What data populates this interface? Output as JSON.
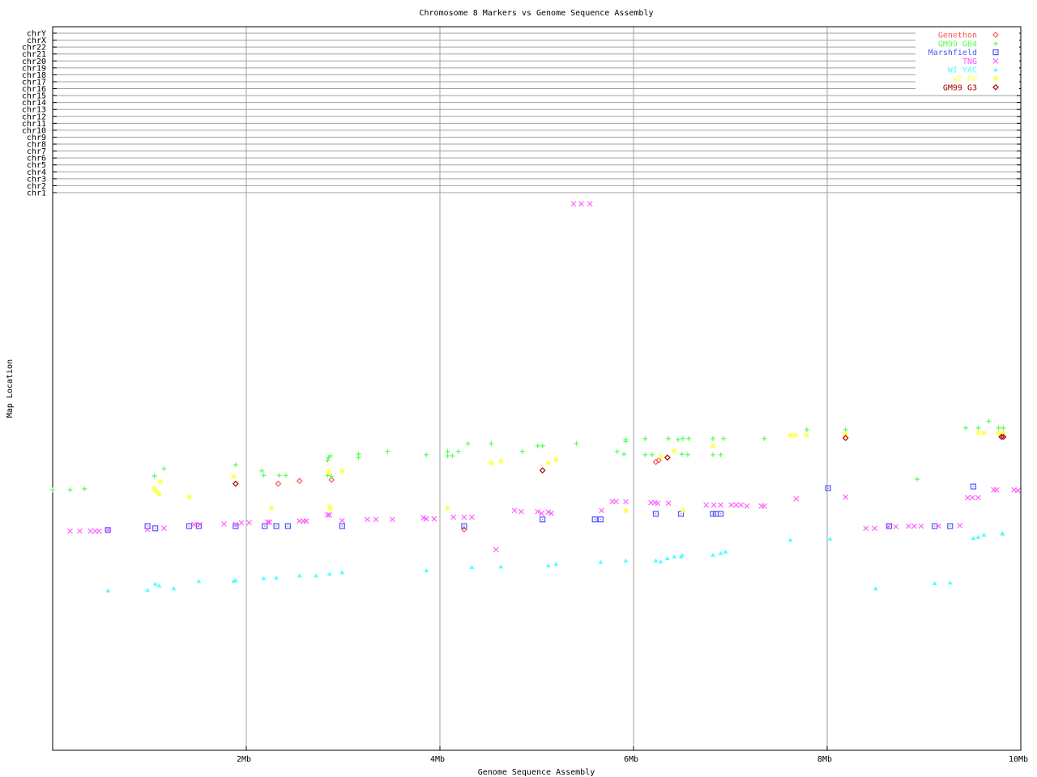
{
  "chart_data": {
    "type": "scatter",
    "title": "Chromosome 8 Markers vs Genome Sequence Assembly",
    "xlabel": "Genome Sequence Assembly",
    "ylabel": "Map Location",
    "xlim": [
      0,
      10
    ],
    "x_unit": "Mb",
    "x_ticks": [
      "2Mb",
      "4Mb",
      "6Mb",
      "8Mb",
      "10Mb"
    ],
    "x_tick_values": [
      2,
      4,
      6,
      8,
      10
    ],
    "y_category_ticks": [
      "chrY",
      "chrX",
      "chr22",
      "chr21",
      "chr20",
      "chr19",
      "chr18",
      "chr17",
      "chr16",
      "chr15",
      "chr14",
      "chr13",
      "chr12",
      "chr11",
      "chr10",
      "chr9",
      "chr8",
      "chr7",
      "chr6",
      "chr5",
      "chr4",
      "chr3",
      "chr2",
      "chr1"
    ],
    "ylim": [
      0,
      100
    ],
    "grid": true,
    "legend_position": "top-right",
    "series": [
      {
        "name": "Genethon",
        "color": "#ff5555",
        "marker": "diamond",
        "points": [
          [
            2.33,
            47.8
          ],
          [
            2.55,
            48.3
          ],
          [
            2.88,
            48.5
          ],
          [
            4.25,
            39.6
          ],
          [
            6.23,
            51.7
          ],
          [
            6.26,
            52.0
          ]
        ]
      },
      {
        "name": "GM99 GB4",
        "color": "#55ff55",
        "marker": "plus",
        "points": [
          [
            0,
            46.7
          ],
          [
            0.18,
            46.7
          ],
          [
            0.33,
            46.9
          ],
          [
            1.05,
            49.2
          ],
          [
            1.15,
            50.5
          ],
          [
            1.89,
            51.2
          ],
          [
            2.16,
            50.1
          ],
          [
            2.18,
            49.3
          ],
          [
            2.34,
            49.3
          ],
          [
            2.41,
            49.3
          ],
          [
            2.85,
            52.5
          ],
          [
            2.84,
            52.0
          ],
          [
            2.87,
            52.8
          ],
          [
            2.84,
            49.3
          ],
          [
            2.88,
            49.1
          ],
          [
            3.16,
            53.1
          ],
          [
            3.16,
            52.5
          ],
          [
            3.46,
            53.6
          ],
          [
            3.86,
            53.0
          ],
          [
            4.08,
            53.6
          ],
          [
            4.08,
            52.8
          ],
          [
            4.13,
            52.8
          ],
          [
            4.19,
            53.6
          ],
          [
            4.29,
            55.0
          ],
          [
            4.53,
            55.0
          ],
          [
            4.85,
            53.6
          ],
          [
            5.01,
            54.6
          ],
          [
            5.06,
            54.6
          ],
          [
            5.41,
            55.0
          ],
          [
            5.83,
            53.6
          ],
          [
            5.9,
            53.1
          ],
          [
            5.92,
            55.7
          ],
          [
            5.92,
            55.4
          ],
          [
            6.12,
            55.9
          ],
          [
            6.12,
            53.0
          ],
          [
            6.19,
            53.0
          ],
          [
            6.36,
            55.9
          ],
          [
            6.46,
            55.7
          ],
          [
            6.51,
            55.9
          ],
          [
            6.57,
            55.9
          ],
          [
            6.5,
            53.1
          ],
          [
            6.56,
            53.0
          ],
          [
            6.82,
            55.9
          ],
          [
            6.82,
            53.0
          ],
          [
            6.93,
            55.9
          ],
          [
            6.9,
            53.0
          ],
          [
            7.35,
            55.9
          ],
          [
            7.79,
            57.5
          ],
          [
            8.19,
            57.5
          ],
          [
            8.93,
            48.6
          ],
          [
            9.43,
            57.8
          ],
          [
            9.56,
            57.8
          ],
          [
            9.67,
            59.0
          ],
          [
            9.77,
            57.8
          ],
          [
            9.82,
            57.8
          ]
        ]
      },
      {
        "name": "Marshfield",
        "color": "#5555ff",
        "marker": "square",
        "points": [
          [
            0.57,
            39.5
          ],
          [
            0.98,
            40.2
          ],
          [
            1.06,
            39.8
          ],
          [
            1.41,
            40.2
          ],
          [
            1.51,
            40.2
          ],
          [
            1.89,
            40.2
          ],
          [
            2.19,
            40.2
          ],
          [
            2.31,
            40.2
          ],
          [
            2.43,
            40.2
          ],
          [
            2.99,
            40.2
          ],
          [
            4.25,
            40.2
          ],
          [
            5.06,
            41.4
          ],
          [
            5.6,
            41.4
          ],
          [
            5.66,
            41.4
          ],
          [
            6.23,
            42.4
          ],
          [
            6.49,
            42.4
          ],
          [
            6.82,
            42.4
          ],
          [
            6.85,
            42.4
          ],
          [
            6.9,
            42.4
          ],
          [
            8.01,
            47.0
          ],
          [
            8.64,
            40.2
          ],
          [
            9.11,
            40.2
          ],
          [
            9.27,
            40.2
          ],
          [
            9.51,
            47.3
          ]
        ]
      },
      {
        "name": "TNG",
        "color": "#ff55ff",
        "marker": "x",
        "points": [
          [
            0.18,
            39.3
          ],
          [
            0.28,
            39.3
          ],
          [
            0.39,
            39.3
          ],
          [
            0.44,
            39.3
          ],
          [
            0.48,
            39.3
          ],
          [
            0.57,
            39.5
          ],
          [
            0.98,
            39.6
          ],
          [
            1.15,
            39.8
          ],
          [
            1.46,
            40.5
          ],
          [
            1.52,
            40.5
          ],
          [
            1.77,
            40.6
          ],
          [
            1.89,
            40.5
          ],
          [
            1.95,
            40.8
          ],
          [
            2.03,
            40.8
          ],
          [
            2.22,
            40.9
          ],
          [
            2.24,
            40.9
          ],
          [
            2.55,
            41.1
          ],
          [
            2.59,
            41.1
          ],
          [
            2.62,
            41.1
          ],
          [
            2.84,
            42.2
          ],
          [
            2.86,
            42.2
          ],
          [
            2.99,
            41.2
          ],
          [
            3.25,
            41.4
          ],
          [
            3.34,
            41.4
          ],
          [
            3.51,
            41.4
          ],
          [
            3.83,
            41.7
          ],
          [
            3.86,
            41.5
          ],
          [
            3.94,
            41.5
          ],
          [
            4.14,
            41.8
          ],
          [
            4.25,
            41.8
          ],
          [
            4.33,
            41.8
          ],
          [
            4.58,
            36.0
          ],
          [
            4.77,
            43.0
          ],
          [
            4.84,
            42.8
          ],
          [
            5.01,
            42.8
          ],
          [
            5.05,
            42.5
          ],
          [
            5.12,
            42.7
          ],
          [
            5.15,
            42.5
          ],
          [
            5.67,
            43.0
          ],
          [
            5.78,
            44.6
          ],
          [
            5.82,
            44.6
          ],
          [
            5.92,
            44.6
          ],
          [
            6.18,
            44.4
          ],
          [
            6.22,
            44.4
          ],
          [
            6.25,
            44.3
          ],
          [
            6.36,
            44.3
          ],
          [
            6.75,
            44.0
          ],
          [
            6.83,
            44.0
          ],
          [
            6.9,
            44.0
          ],
          [
            7.01,
            44.0
          ],
          [
            7.06,
            44.0
          ],
          [
            7.11,
            44.0
          ],
          [
            7.17,
            43.8
          ],
          [
            7.32,
            43.8
          ],
          [
            7.35,
            43.8
          ],
          [
            7.68,
            45.1
          ],
          [
            8.19,
            45.4
          ],
          [
            8.4,
            39.8
          ],
          [
            8.49,
            39.8
          ],
          [
            8.63,
            40.1
          ],
          [
            8.71,
            40.1
          ],
          [
            8.84,
            40.2
          ],
          [
            8.9,
            40.2
          ],
          [
            8.97,
            40.2
          ],
          [
            9.15,
            40.2
          ],
          [
            9.37,
            40.3
          ],
          [
            9.45,
            45.3
          ],
          [
            9.5,
            45.3
          ],
          [
            9.56,
            45.3
          ],
          [
            9.72,
            46.7
          ],
          [
            9.75,
            46.7
          ],
          [
            9.93,
            46.7
          ],
          [
            9.97,
            46.6
          ],
          [
            5.38,
            98.0
          ],
          [
            5.46,
            98.0
          ],
          [
            5.55,
            98.0
          ]
        ]
      },
      {
        "name": "WI YAC",
        "color": "#55ffff",
        "marker": "triangle",
        "points": [
          [
            0.57,
            28.6
          ],
          [
            0.98,
            28.7
          ],
          [
            1.06,
            29.8
          ],
          [
            1.1,
            29.5
          ],
          [
            1.25,
            29.0
          ],
          [
            1.51,
            30.3
          ],
          [
            1.87,
            30.3
          ],
          [
            1.89,
            30.5
          ],
          [
            2.18,
            30.8
          ],
          [
            2.31,
            30.9
          ],
          [
            2.55,
            31.3
          ],
          [
            2.72,
            31.3
          ],
          [
            2.86,
            31.6
          ],
          [
            2.99,
            31.9
          ],
          [
            3.86,
            32.2
          ],
          [
            4.33,
            32.8
          ],
          [
            4.63,
            32.9
          ],
          [
            5.12,
            33.1
          ],
          [
            5.2,
            33.4
          ],
          [
            5.66,
            33.7
          ],
          [
            5.92,
            34.0
          ],
          [
            6.23,
            34.0
          ],
          [
            6.28,
            33.8
          ],
          [
            6.35,
            34.4
          ],
          [
            6.42,
            34.7
          ],
          [
            6.49,
            34.7
          ],
          [
            6.5,
            35.0
          ],
          [
            6.82,
            35.0
          ],
          [
            6.9,
            35.3
          ],
          [
            6.95,
            35.6
          ],
          [
            7.62,
            37.7
          ],
          [
            8.03,
            37.9
          ],
          [
            8.5,
            29.0
          ],
          [
            9.11,
            29.9
          ],
          [
            9.27,
            30.0
          ],
          [
            9.51,
            38.0
          ],
          [
            9.56,
            38.2
          ],
          [
            9.62,
            38.6
          ],
          [
            9.81,
            38.9
          ],
          [
            9.81,
            38.8
          ]
        ]
      },
      {
        "name": "WI RH",
        "color": "#ffff55",
        "marker": "asterisk",
        "points": [
          [
            1.05,
            47.0
          ],
          [
            1.07,
            46.4
          ],
          [
            1.1,
            45.9
          ],
          [
            1.11,
            48.2
          ],
          [
            1.41,
            45.4
          ],
          [
            1.87,
            49.1
          ],
          [
            2.26,
            43.4
          ],
          [
            2.85,
            50.1
          ],
          [
            2.85,
            49.8
          ],
          [
            2.99,
            50.1
          ],
          [
            2.86,
            43.7
          ],
          [
            2.87,
            43.3
          ],
          [
            4.08,
            43.4
          ],
          [
            4.53,
            51.5
          ],
          [
            4.63,
            51.8
          ],
          [
            5.12,
            51.5
          ],
          [
            5.2,
            52.1
          ],
          [
            5.92,
            43.0
          ],
          [
            6.42,
            53.7
          ],
          [
            6.28,
            52.7
          ],
          [
            6.82,
            54.6
          ],
          [
            7.62,
            56.5
          ],
          [
            7.67,
            56.5
          ],
          [
            7.79,
            56.5
          ],
          [
            8.19,
            56.7
          ],
          [
            9.56,
            56.9
          ],
          [
            9.62,
            56.9
          ],
          [
            9.77,
            56.9
          ],
          [
            9.82,
            56.9
          ],
          [
            6.51,
            43.0
          ]
        ]
      },
      {
        "name": "GM99 G3",
        "color": "#aa0000",
        "marker": "diamond",
        "points": [
          [
            1.89,
            47.8
          ],
          [
            5.06,
            50.2
          ],
          [
            6.35,
            52.5
          ],
          [
            8.19,
            56.0
          ],
          [
            9.8,
            56.2
          ],
          [
            9.82,
            56.2
          ]
        ]
      }
    ]
  }
}
